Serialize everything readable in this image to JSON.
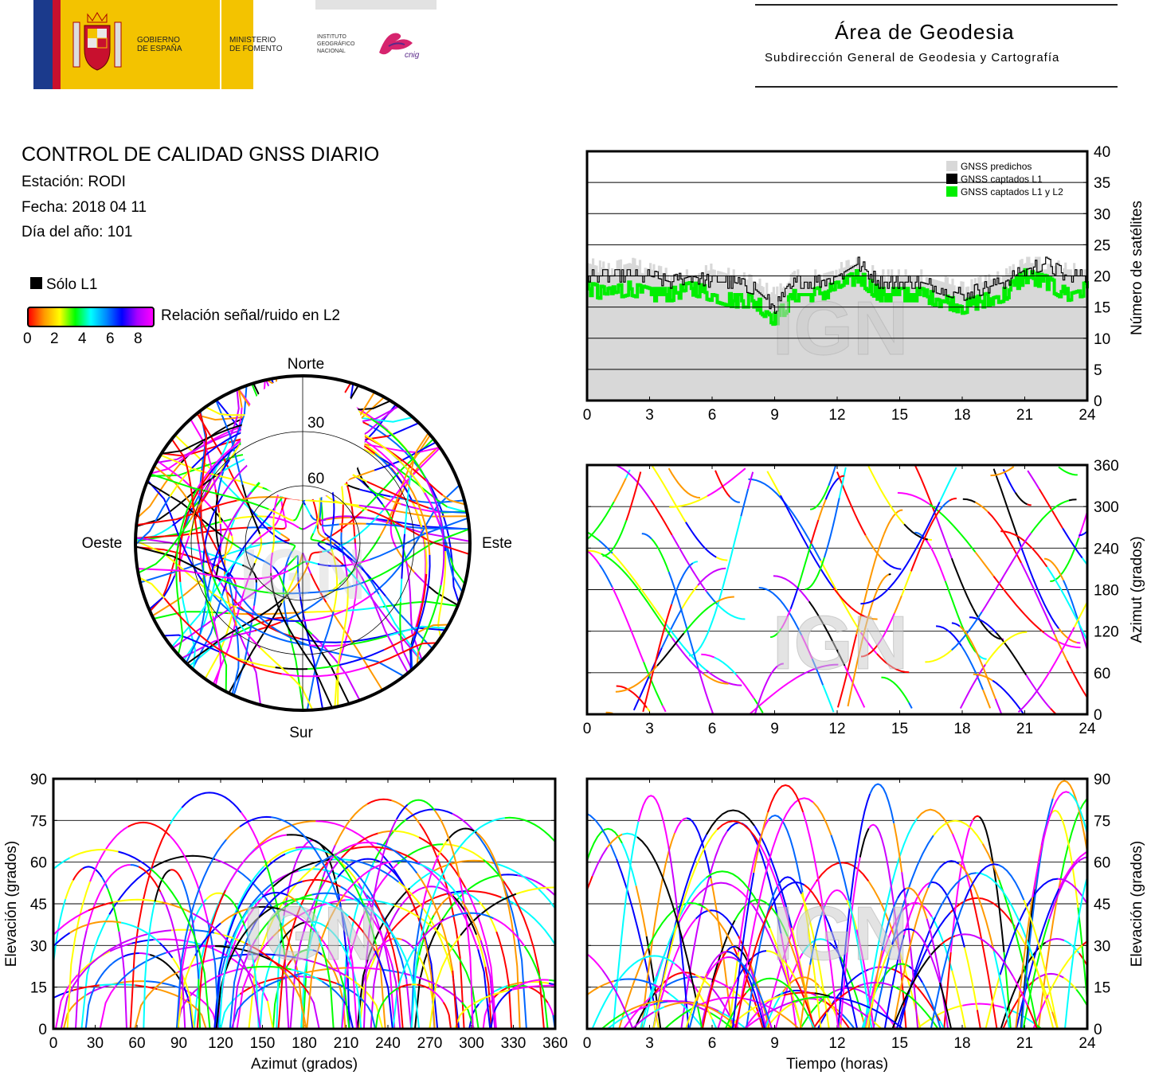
{
  "header": {
    "gov_line1": "GOBIERNO",
    "gov_line2": "DE ESPAÑA",
    "min_line1": "MINISTERIO",
    "min_line2": "DE FOMENTO",
    "inst_line1": "INSTITUTO",
    "inst_line2": "GEOGRÁFICO",
    "inst_line3": "NACIONAL",
    "cnig": "cnig",
    "area_title": "Área de Geodesia",
    "area_subtitle": "Subdirección General de Geodesia y Cartografía"
  },
  "report": {
    "title": "CONTROL DE CALIDAD GNSS DIARIO",
    "station": "Estación: RODI",
    "date": "Fecha: 2018 04 11",
    "doy": "Día del año: 101"
  },
  "legend": {
    "solo_l1": "Sólo L1",
    "snr_label": "Relación señal/ruido en L2",
    "snr_ticks": [
      "0",
      "2",
      "4",
      "6",
      "8"
    ]
  },
  "skyplot": {
    "north": "Norte",
    "south": "Sur",
    "west": "Oeste",
    "east": "Este",
    "ring_labels": [
      "30",
      "60"
    ]
  },
  "watermark": "IGN",
  "colors": {
    "predicted": "#d8d8d8",
    "l1": "#000000",
    "l1l2": "#00ee00",
    "snr_scale": [
      "#ff0000",
      "#ff9900",
      "#ffff00",
      "#00ff00",
      "#00ffff",
      "#0066ff",
      "#0000ff",
      "#cc00ff",
      "#ff00ff"
    ]
  },
  "chart_data": [
    {
      "id": "satellites",
      "type": "line",
      "ylabel": "Número de satélites",
      "xlim": [
        0,
        24
      ],
      "ylim": [
        0,
        40
      ],
      "xticks": [
        "0",
        "3",
        "6",
        "9",
        "12",
        "15",
        "18",
        "21",
        "24"
      ],
      "yticks": [
        "0",
        "5",
        "10",
        "15",
        "20",
        "25",
        "30",
        "35",
        "40"
      ],
      "grid": true,
      "legend_position": "top-right",
      "series": [
        {
          "name": "GNSS predichos",
          "x": [
            0,
            1,
            2,
            3,
            4,
            5,
            6,
            7,
            8,
            9,
            10,
            11,
            12,
            13,
            14,
            15,
            16,
            17,
            18,
            19,
            20,
            21,
            22,
            23,
            24
          ],
          "values": [
            22,
            21,
            22,
            21,
            20,
            20,
            21,
            20,
            19,
            17,
            20,
            20,
            21,
            22,
            20,
            20,
            20,
            19,
            18,
            19,
            20,
            22,
            22,
            21,
            21
          ]
        },
        {
          "name": "GNSS captados L1",
          "x": [
            0,
            1,
            2,
            3,
            4,
            5,
            6,
            7,
            8,
            9,
            10,
            11,
            12,
            13,
            14,
            15,
            16,
            17,
            18,
            19,
            20,
            21,
            22,
            23,
            24
          ],
          "values": [
            20,
            20,
            20,
            20,
            19,
            20,
            19,
            19,
            18,
            15,
            19,
            19,
            20,
            22,
            19,
            19,
            19,
            18,
            17,
            18,
            19,
            21,
            22,
            20,
            20
          ]
        },
        {
          "name": "GNSS captados L1 y L2",
          "x": [
            0,
            1,
            2,
            3,
            4,
            5,
            6,
            7,
            8,
            9,
            10,
            11,
            12,
            13,
            14,
            15,
            16,
            17,
            18,
            19,
            20,
            21,
            22,
            23,
            24
          ],
          "values": [
            18,
            17,
            18,
            17,
            17,
            18,
            17,
            16,
            16,
            13,
            17,
            17,
            18,
            20,
            17,
            17,
            17,
            16,
            15,
            16,
            17,
            20,
            19,
            17,
            18
          ]
        }
      ]
    },
    {
      "id": "azimuth-time",
      "type": "scatter",
      "ylabel": "Azimut (grados)",
      "xlim": [
        0,
        24
      ],
      "ylim": [
        0,
        360
      ],
      "xticks": [
        "0",
        "3",
        "6",
        "9",
        "12",
        "15",
        "18",
        "21",
        "24"
      ],
      "yticks": [
        "0",
        "60",
        "120",
        "180",
        "240",
        "300",
        "360"
      ],
      "grid": true
    },
    {
      "id": "elevation-azimuth",
      "type": "scatter",
      "xlabel": "Azimut (grados)",
      "ylabel": "Elevación (grados)",
      "xlim": [
        0,
        360
      ],
      "ylim": [
        0,
        90
      ],
      "xticks": [
        "0",
        "30",
        "60",
        "90",
        "120",
        "150",
        "180",
        "210",
        "240",
        "270",
        "300",
        "330",
        "360"
      ],
      "yticks": [
        "0",
        "15",
        "30",
        "45",
        "60",
        "75",
        "90"
      ],
      "grid": true
    },
    {
      "id": "elevation-time",
      "type": "line",
      "xlabel": "Tiempo (horas)",
      "ylabel": "Elevación (grados)",
      "xlim": [
        0,
        24
      ],
      "ylim": [
        0,
        90
      ],
      "xticks": [
        "0",
        "3",
        "6",
        "9",
        "12",
        "15",
        "18",
        "21",
        "24"
      ],
      "yticks": [
        "0",
        "15",
        "30",
        "45",
        "60",
        "75",
        "90"
      ],
      "grid": true
    }
  ]
}
